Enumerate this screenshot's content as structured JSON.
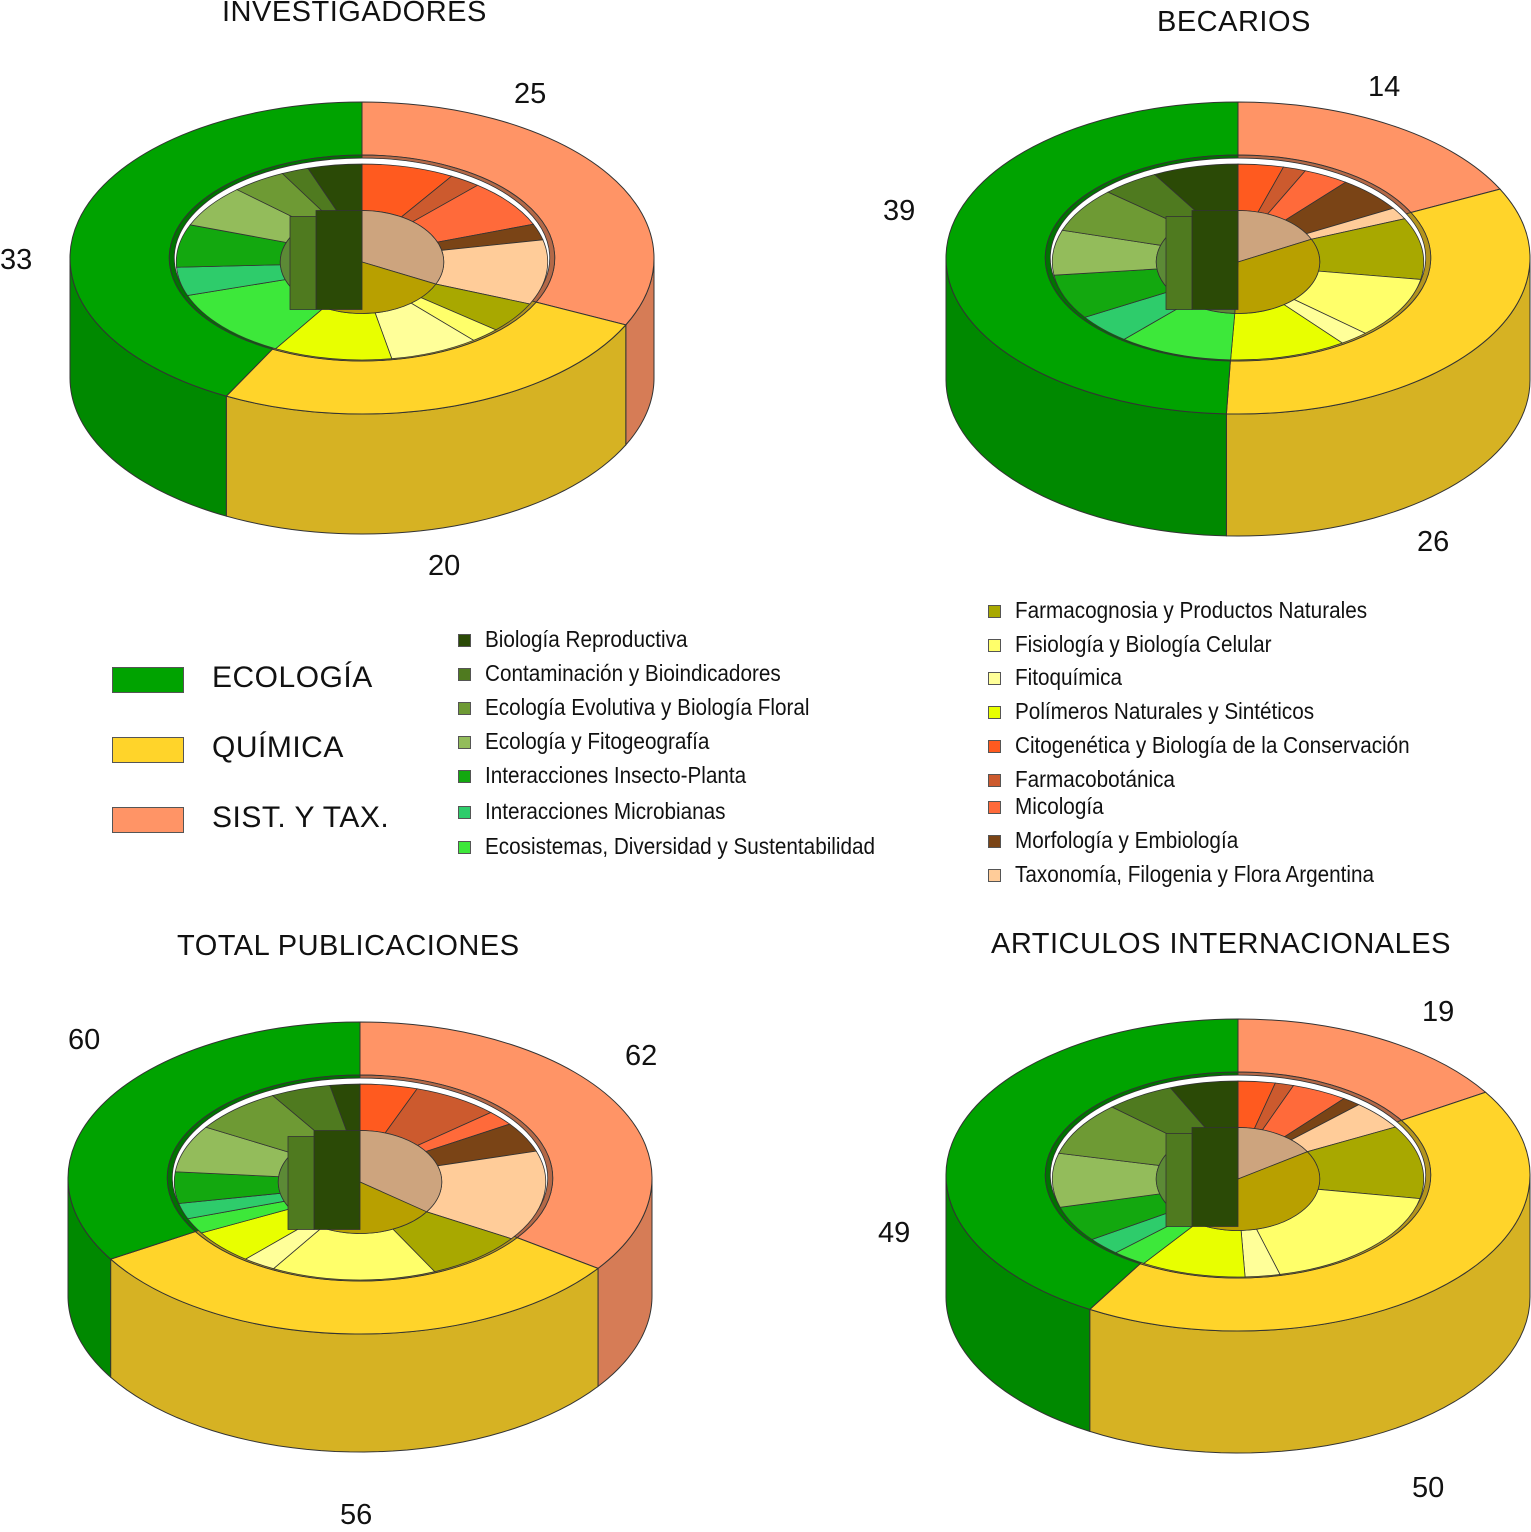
{
  "colors": {
    "ecologia": "#00a300",
    "quimica": "#ffd42a",
    "sist_tax": "#ff9466"
  },
  "main_legend": [
    {
      "label": "ECOLOGÍA",
      "color": "#00a300"
    },
    {
      "label": "QUÍMICA",
      "color": "#ffd42a"
    },
    {
      "label": "SIST. Y TAX.",
      "color": "#ff9466"
    }
  ],
  "sub_legend_ecologia": [
    {
      "label": "Biología Reproductiva",
      "color": "#2b4a06"
    },
    {
      "label": "Contaminación y Bioindicadores",
      "color": "#4f7a1f"
    },
    {
      "label": "Ecología Evolutiva y Biología Floral",
      "color": "#6e9a34"
    },
    {
      "label": "Ecología  y Fitogeografía",
      "color": "#93bc5b"
    },
    {
      "label": "Interacciones Insecto-Planta",
      "color": "#13a80f"
    },
    {
      "label": "Interacciones Microbianas",
      "color": "#2ecc6b"
    },
    {
      "label": "Ecosistemas, Diversidad y Sustentabilidad",
      "color": "#3de83a"
    }
  ],
  "sub_legend_quimica_sist": [
    {
      "label": "Farmacognosia y Productos Naturales",
      "color": "#a8a800"
    },
    {
      "label": "Fisiología y Biología Celular",
      "color": "#ffff6a"
    },
    {
      "label": "Fitoquímica",
      "color": "#ffff99"
    },
    {
      "label": "Polímeros Naturales y Sintéticos",
      "color": "#e8ff00"
    },
    {
      "label": "Citogenética y Biología de la Conservación",
      "color": "#ff5a1f"
    },
    {
      "label": "Farmacobotánica",
      "color": "#cc5a2e"
    },
    {
      "label": "Micología",
      "color": "#ff6a3a"
    },
    {
      "label": "Morfología y Embiología",
      "color": "#7a4416"
    },
    {
      "label": "Taxonomía, Filogenia y Flora Argentina",
      "color": "#ffcc99"
    }
  ],
  "chart_data": [
    {
      "type": "pie",
      "title": "INVESTIGADORES",
      "labels": [
        "SIST. Y TAX.",
        "QUÍMICA",
        "ECOLOGÍA"
      ],
      "values": [
        25,
        20,
        33
      ],
      "value_labels": [
        "25",
        "20",
        "33"
      ],
      "inner_ring_subcategories": 16
    },
    {
      "type": "pie",
      "title": "BECARIOS",
      "labels": [
        "SIST. Y TAX.",
        "QUÍMICA",
        "ECOLOGÍA"
      ],
      "values": [
        14,
        26,
        39
      ],
      "value_labels": [
        "14",
        "26",
        "39"
      ],
      "inner_ring_subcategories": 16
    },
    {
      "type": "pie",
      "title": "TOTAL PUBLICACIONES",
      "labels": [
        "SIST. Y TAX.",
        "QUÍMICA",
        "ECOLOGÍA"
      ],
      "values": [
        62,
        56,
        60
      ],
      "value_labels": [
        "62",
        "56",
        "60"
      ],
      "inner_ring_subcategories": 16
    },
    {
      "type": "pie",
      "title": "ARTICULOS INTERNACIONALES",
      "labels": [
        "SIST. Y TAX.",
        "QUÍMICA",
        "ECOLOGÍA"
      ],
      "values": [
        19,
        50,
        49
      ],
      "value_labels": [
        "19",
        "50",
        "49"
      ],
      "inner_ring_subcategories": 16
    }
  ]
}
